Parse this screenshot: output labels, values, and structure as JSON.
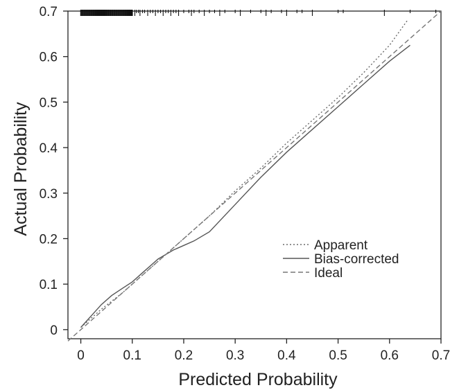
{
  "chart_data": {
    "type": "line",
    "title": "",
    "xlabel": "Predicted Probability",
    "ylabel": "Actual Probability",
    "xlim": [
      -0.025,
      0.7
    ],
    "ylim": [
      -0.02,
      0.7
    ],
    "xticks": [
      0,
      0.1,
      0.2,
      0.3,
      0.4,
      0.5,
      0.6,
      0.7
    ],
    "xtick_labels": [
      "0",
      "0.1",
      "0.2",
      "0.3",
      "0.4",
      "0.5",
      "0.6",
      "0.7"
    ],
    "yticks": [
      0,
      0.1,
      0.2,
      0.3,
      0.4,
      0.5,
      0.6,
      0.7
    ],
    "ytick_labels": [
      "0",
      "0.1",
      "0.2",
      "0.3",
      "0.4",
      "0.5",
      "0.6",
      "0.7"
    ],
    "grid": false,
    "legend_position": "bottom-right",
    "series": [
      {
        "name": "Apparent",
        "style": "dotted",
        "color": "#6b6b6b",
        "x": [
          0,
          0.04,
          0.08,
          0.12,
          0.16,
          0.2,
          0.25,
          0.3,
          0.35,
          0.4,
          0.45,
          0.5,
          0.55,
          0.6,
          0.635
        ],
        "y": [
          0.005,
          0.045,
          0.08,
          0.12,
          0.16,
          0.2,
          0.25,
          0.305,
          0.355,
          0.41,
          0.46,
          0.51,
          0.565,
          0.625,
          0.68
        ]
      },
      {
        "name": "Bias-corrected",
        "style": "solid",
        "color": "#555555",
        "x": [
          0,
          0.02,
          0.04,
          0.06,
          0.08,
          0.1,
          0.12,
          0.15,
          0.18,
          0.2,
          0.22,
          0.25,
          0.3,
          0.35,
          0.4,
          0.45,
          0.5,
          0.55,
          0.6,
          0.64
        ],
        "y": [
          0.005,
          0.03,
          0.055,
          0.075,
          0.09,
          0.105,
          0.125,
          0.155,
          0.175,
          0.185,
          0.195,
          0.215,
          0.275,
          0.335,
          0.39,
          0.44,
          0.49,
          0.54,
          0.59,
          0.625
        ]
      },
      {
        "name": "Ideal",
        "style": "dashed",
        "color": "#777777",
        "x": [
          -0.025,
          0.7
        ],
        "y": [
          -0.025,
          0.7
        ]
      }
    ],
    "rug": {
      "color": "#111111",
      "y": 0.7,
      "dense_min": 0,
      "dense_max": 0.1,
      "x": [
        0.0,
        0.002,
        0.004,
        0.006,
        0.008,
        0.01,
        0.012,
        0.014,
        0.016,
        0.018,
        0.02,
        0.022,
        0.024,
        0.026,
        0.028,
        0.03,
        0.032,
        0.034,
        0.036,
        0.038,
        0.04,
        0.042,
        0.044,
        0.046,
        0.048,
        0.05,
        0.052,
        0.054,
        0.056,
        0.058,
        0.06,
        0.062,
        0.064,
        0.066,
        0.068,
        0.07,
        0.072,
        0.074,
        0.076,
        0.078,
        0.08,
        0.082,
        0.084,
        0.086,
        0.088,
        0.09,
        0.092,
        0.094,
        0.096,
        0.098,
        0.1,
        0.105,
        0.108,
        0.112,
        0.115,
        0.12,
        0.124,
        0.13,
        0.135,
        0.14,
        0.145,
        0.15,
        0.155,
        0.16,
        0.165,
        0.17,
        0.175,
        0.18,
        0.185,
        0.19,
        0.2,
        0.21,
        0.215,
        0.22,
        0.23,
        0.24,
        0.25,
        0.26,
        0.27,
        0.28,
        0.3,
        0.31,
        0.33,
        0.35,
        0.36,
        0.37,
        0.39,
        0.4,
        0.42,
        0.43,
        0.45,
        0.5,
        0.51,
        0.59,
        0.64,
        0.69
      ]
    }
  }
}
